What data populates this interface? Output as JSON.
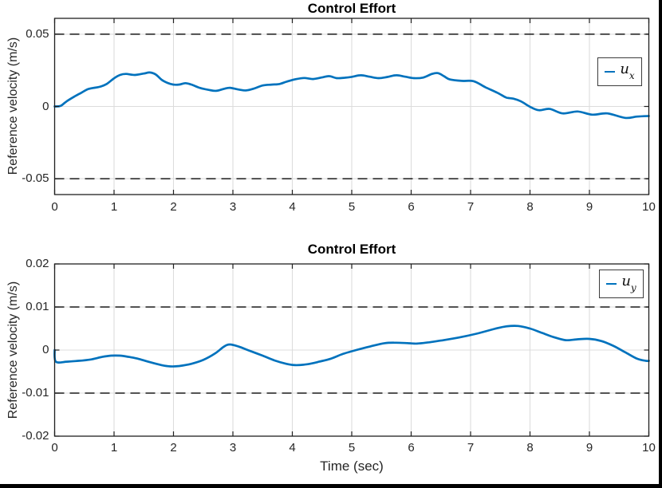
{
  "figure": {
    "background": "#ffffff",
    "accent_blue": "#0072bd",
    "grid_color": "#dcdcdc",
    "axis_color": "#1f1f1f",
    "dashed_line_color": "#1a1a1a",
    "window_border_color": "#000000"
  },
  "chart_data": [
    {
      "type": "line",
      "title": "Control Effort",
      "ylabel": "Reference velocity (m/s)",
      "xlabel": "",
      "xlim": [
        0,
        10
      ],
      "ylim": [
        -0.061,
        0.061
      ],
      "grid": true,
      "xticks": [
        0,
        1,
        2,
        3,
        4,
        5,
        6,
        7,
        8,
        9,
        10
      ],
      "xtick_labels": [
        "0",
        "1",
        "2",
        "3",
        "4",
        "5",
        "6",
        "7",
        "8",
        "9",
        "10"
      ],
      "yticks": [
        -0.05,
        0,
        0.05
      ],
      "ytick_labels": [
        "-0.05",
        "0",
        "0.05"
      ],
      "limit_lines": [
        0.05,
        -0.05
      ],
      "legend": {
        "base": "u",
        "sub": "x",
        "position": "northeast"
      },
      "series": [
        {
          "name": "ux",
          "color": "#0072bd",
          "points": [
            [
              0,
              0
            ],
            [
              0.1,
              0.0004
            ],
            [
              0.2,
              0.0035
            ],
            [
              0.33,
              0.0068
            ],
            [
              0.45,
              0.0095
            ],
            [
              0.55,
              0.0118
            ],
            [
              0.65,
              0.0128
            ],
            [
              0.75,
              0.0135
            ],
            [
              0.87,
              0.0154
            ],
            [
              1.0,
              0.0195
            ],
            [
              1.1,
              0.0218
            ],
            [
              1.2,
              0.0225
            ],
            [
              1.35,
              0.0218
            ],
            [
              1.5,
              0.0228
            ],
            [
              1.6,
              0.0235
            ],
            [
              1.7,
              0.0222
            ],
            [
              1.8,
              0.0185
            ],
            [
              1.9,
              0.0163
            ],
            [
              2.0,
              0.0151
            ],
            [
              2.1,
              0.0152
            ],
            [
              2.2,
              0.0161
            ],
            [
              2.3,
              0.0152
            ],
            [
              2.45,
              0.0128
            ],
            [
              2.6,
              0.0114
            ],
            [
              2.72,
              0.0108
            ],
            [
              2.85,
              0.0122
            ],
            [
              2.95,
              0.0129
            ],
            [
              3.1,
              0.0117
            ],
            [
              3.22,
              0.0111
            ],
            [
              3.35,
              0.0123
            ],
            [
              3.5,
              0.0145
            ],
            [
              3.65,
              0.0151
            ],
            [
              3.78,
              0.0155
            ],
            [
              3.9,
              0.0171
            ],
            [
              4.05,
              0.0188
            ],
            [
              4.2,
              0.0197
            ],
            [
              4.35,
              0.019
            ],
            [
              4.5,
              0.0201
            ],
            [
              4.62,
              0.021
            ],
            [
              4.75,
              0.0196
            ],
            [
              4.88,
              0.0199
            ],
            [
              5.0,
              0.0205
            ],
            [
              5.15,
              0.0216
            ],
            [
              5.3,
              0.0206
            ],
            [
              5.45,
              0.0196
            ],
            [
              5.6,
              0.0204
            ],
            [
              5.75,
              0.0216
            ],
            [
              5.9,
              0.0206
            ],
            [
              6.05,
              0.0196
            ],
            [
              6.2,
              0.02
            ],
            [
              6.35,
              0.0225
            ],
            [
              6.45,
              0.0231
            ],
            [
              6.55,
              0.021
            ],
            [
              6.65,
              0.0187
            ],
            [
              6.85,
              0.0177
            ],
            [
              7.05,
              0.0175
            ],
            [
              7.25,
              0.0133
            ],
            [
              7.45,
              0.0095
            ],
            [
              7.6,
              0.0062
            ],
            [
              7.72,
              0.0054
            ],
            [
              7.85,
              0.0035
            ],
            [
              8.0,
              -0.0002
            ],
            [
              8.15,
              -0.0026
            ],
            [
              8.33,
              -0.0017
            ],
            [
              8.55,
              -0.0048
            ],
            [
              8.8,
              -0.0035
            ],
            [
              9.05,
              -0.0057
            ],
            [
              9.3,
              -0.0048
            ],
            [
              9.6,
              -0.0079
            ],
            [
              9.8,
              -0.007
            ],
            [
              10,
              -0.0066
            ]
          ]
        }
      ]
    },
    {
      "type": "line",
      "title": "Control Effort",
      "ylabel": "Reference velocity (m/s)",
      "xlabel": "Time (sec)",
      "xlim": [
        0,
        10
      ],
      "ylim": [
        -0.02,
        0.02
      ],
      "grid": true,
      "xticks": [
        0,
        1,
        2,
        3,
        4,
        5,
        6,
        7,
        8,
        9,
        10
      ],
      "xtick_labels": [
        "0",
        "1",
        "2",
        "3",
        "4",
        "5",
        "6",
        "7",
        "8",
        "9",
        "10"
      ],
      "yticks": [
        -0.02,
        -0.01,
        0,
        0.01,
        0.02
      ],
      "ytick_labels": [
        "-0.02",
        "-0.01",
        "0",
        "0.01",
        "0.02"
      ],
      "limit_lines": [
        0.01,
        -0.01
      ],
      "legend": {
        "base": "u",
        "sub": "y",
        "position": "northeast"
      },
      "series": [
        {
          "name": "uy",
          "color": "#0072bd",
          "points": [
            [
              0,
              0
            ],
            [
              0.02,
              -0.0027
            ],
            [
              0.2,
              -0.0027
            ],
            [
              0.4,
              -0.0025
            ],
            [
              0.6,
              -0.0022
            ],
            [
              0.8,
              -0.0016
            ],
            [
              0.95,
              -0.0013
            ],
            [
              1.1,
              -0.0013
            ],
            [
              1.25,
              -0.0016
            ],
            [
              1.4,
              -0.002
            ],
            [
              1.6,
              -0.0028
            ],
            [
              1.8,
              -0.0035
            ],
            [
              1.95,
              -0.0038
            ],
            [
              2.1,
              -0.0037
            ],
            [
              2.3,
              -0.0032
            ],
            [
              2.5,
              -0.0023
            ],
            [
              2.7,
              -0.0008
            ],
            [
              2.85,
              0.0008
            ],
            [
              2.95,
              0.0013
            ],
            [
              3.1,
              0.0008
            ],
            [
              3.25,
              0.0
            ],
            [
              3.5,
              -0.0013
            ],
            [
              3.7,
              -0.0024
            ],
            [
              3.9,
              -0.0032
            ],
            [
              4.05,
              -0.0035
            ],
            [
              4.25,
              -0.0033
            ],
            [
              4.45,
              -0.0027
            ],
            [
              4.65,
              -0.002
            ],
            [
              4.85,
              -0.0009
            ],
            [
              5.05,
              -0.0001
            ],
            [
              5.3,
              0.0008
            ],
            [
              5.55,
              0.0016
            ],
            [
              5.75,
              0.0017
            ],
            [
              5.95,
              0.0016
            ],
            [
              6.1,
              0.0015
            ],
            [
              6.3,
              0.0018
            ],
            [
              6.5,
              0.0022
            ],
            [
              6.8,
              0.0029
            ],
            [
              7.1,
              0.0038
            ],
            [
              7.4,
              0.0049
            ],
            [
              7.6,
              0.0055
            ],
            [
              7.8,
              0.0056
            ],
            [
              8.0,
              0.005
            ],
            [
              8.2,
              0.004
            ],
            [
              8.4,
              0.003
            ],
            [
              8.6,
              0.0023
            ],
            [
              8.8,
              0.0025
            ],
            [
              9.0,
              0.0026
            ],
            [
              9.2,
              0.0021
            ],
            [
              9.4,
              0.001
            ],
            [
              9.6,
              -0.0005
            ],
            [
              9.8,
              -0.002
            ],
            [
              9.95,
              -0.0025
            ],
            [
              10,
              -0.0025
            ]
          ]
        }
      ]
    }
  ]
}
